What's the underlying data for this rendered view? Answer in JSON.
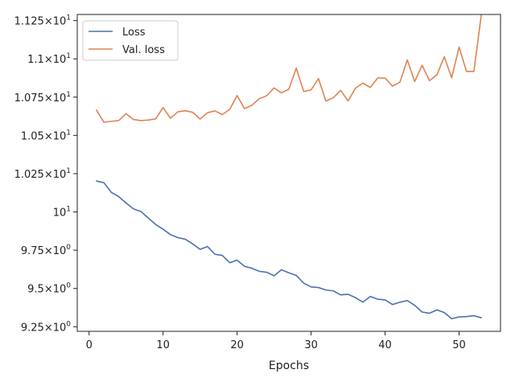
{
  "chart_data": {
    "type": "line",
    "xlabel": "Epochs",
    "ylabel": "",
    "xlim": [
      -1.6,
      55.6
    ],
    "ylim": [
      9.22,
      11.29
    ],
    "x_ticks": [
      {
        "value": 0,
        "label": "0"
      },
      {
        "value": 10,
        "label": "10"
      },
      {
        "value": 20,
        "label": "20"
      },
      {
        "value": 30,
        "label": "30"
      },
      {
        "value": 40,
        "label": "40"
      },
      {
        "value": 50,
        "label": "50"
      }
    ],
    "y_ticks": [
      {
        "value": 9.25,
        "mantissa": "9.25",
        "base": "10",
        "exp": "0"
      },
      {
        "value": 9.5,
        "mantissa": "9.5",
        "base": "10",
        "exp": "0"
      },
      {
        "value": 9.75,
        "mantissa": "9.75",
        "base": "10",
        "exp": "0"
      },
      {
        "value": 10.0,
        "mantissa": "",
        "base": "10",
        "exp": "1"
      },
      {
        "value": 10.25,
        "mantissa": "1.025",
        "base": "10",
        "exp": "1"
      },
      {
        "value": 10.5,
        "mantissa": "1.05",
        "base": "10",
        "exp": "1"
      },
      {
        "value": 10.75,
        "mantissa": "1.075",
        "base": "10",
        "exp": "1"
      },
      {
        "value": 11.0,
        "mantissa": "1.1",
        "base": "10",
        "exp": "1"
      },
      {
        "value": 11.25,
        "mantissa": "1.125",
        "base": "10",
        "exp": "1"
      }
    ],
    "legend_position": "top-left",
    "grid": false,
    "x": [
      1,
      2,
      3,
      4,
      5,
      6,
      7,
      8,
      9,
      10,
      11,
      12,
      13,
      14,
      15,
      16,
      17,
      18,
      19,
      20,
      21,
      22,
      23,
      24,
      25,
      26,
      27,
      28,
      29,
      30,
      31,
      32,
      33,
      34,
      35,
      36,
      37,
      38,
      39,
      40,
      41,
      42,
      43,
      44,
      45,
      46,
      47,
      48,
      49,
      50,
      51,
      52,
      53
    ],
    "series": [
      {
        "name": "Loss",
        "color": "#4c72b0",
        "values": [
          10.202,
          10.191,
          10.128,
          10.1,
          10.058,
          10.02,
          10.003,
          9.96,
          9.918,
          9.887,
          9.852,
          9.832,
          9.822,
          9.791,
          9.755,
          9.774,
          9.723,
          9.716,
          9.668,
          9.685,
          9.645,
          9.632,
          9.612,
          9.606,
          9.583,
          9.622,
          9.602,
          9.585,
          9.535,
          9.51,
          9.506,
          9.49,
          9.484,
          9.458,
          9.462,
          9.44,
          9.411,
          9.448,
          9.43,
          9.425,
          9.395,
          9.41,
          9.421,
          9.39,
          9.346,
          9.338,
          9.36,
          9.343,
          9.302,
          9.314,
          9.316,
          9.322,
          9.309
        ]
      },
      {
        "name": "Val. loss",
        "color": "#dd8452",
        "values": [
          10.665,
          10.586,
          10.592,
          10.597,
          10.642,
          10.604,
          10.597,
          10.6,
          10.608,
          10.682,
          10.612,
          10.654,
          10.661,
          10.651,
          10.607,
          10.648,
          10.66,
          10.636,
          10.67,
          10.76,
          10.675,
          10.697,
          10.74,
          10.759,
          10.81,
          10.778,
          10.802,
          10.94,
          10.787,
          10.797,
          10.871,
          10.724,
          10.746,
          10.794,
          10.725,
          10.808,
          10.842,
          10.813,
          10.875,
          10.875,
          10.822,
          10.847,
          10.993,
          10.852,
          10.958,
          10.858,
          10.895,
          11.014,
          10.876,
          11.077,
          10.918,
          10.918,
          11.286
        ]
      }
    ]
  }
}
